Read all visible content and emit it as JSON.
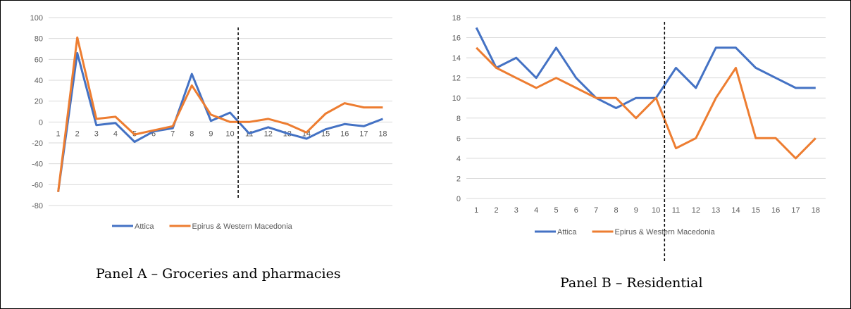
{
  "colors": {
    "attica": "#4472C4",
    "epirus": "#ED7D31",
    "grid": "#D9D9D9",
    "text": "#595959",
    "divider": "#000000"
  },
  "chart_data": [
    {
      "type": "line",
      "caption": "Panel A – Groceries and pharmacies",
      "categories": [
        "1",
        "2",
        "3",
        "4",
        "5",
        "6",
        "7",
        "8",
        "9",
        "10",
        "11",
        "12",
        "13",
        "14",
        "15",
        "16",
        "17",
        "18"
      ],
      "ylim": [
        -80,
        100
      ],
      "yticks": [
        -80,
        -60,
        -40,
        -20,
        0,
        20,
        40,
        60,
        80,
        100
      ],
      "grid": true,
      "legend_position": "bottom",
      "x_axis_labels_at": "zero line",
      "divider_after_category": "10",
      "series": [
        {
          "name": "Attica",
          "values": [
            -67,
            66,
            -3,
            -1,
            -19,
            -9,
            -6,
            46,
            1,
            9,
            -11,
            -5,
            -11,
            -16,
            -7,
            -2,
            -4,
            3
          ]
        },
        {
          "name": "Epirus & Western Macedonia",
          "values": [
            -67,
            81,
            3,
            5,
            -12,
            -8,
            -4,
            35,
            7,
            0,
            0,
            3,
            -2,
            -10,
            8,
            18,
            14,
            14
          ]
        }
      ]
    },
    {
      "type": "line",
      "caption": "Panel B – Residential",
      "categories": [
        "1",
        "2",
        "3",
        "4",
        "5",
        "6",
        "7",
        "8",
        "9",
        "10",
        "11",
        "12",
        "13",
        "14",
        "15",
        "16",
        "17",
        "18"
      ],
      "ylim": [
        0,
        18
      ],
      "yticks": [
        0,
        2,
        4,
        6,
        8,
        10,
        12,
        14,
        16,
        18
      ],
      "grid": true,
      "legend_position": "bottom",
      "divider_after_category": "10",
      "series": [
        {
          "name": "Attica",
          "values": [
            17,
            13,
            14,
            12,
            15,
            12,
            10,
            9,
            10,
            10,
            13,
            11,
            15,
            15,
            13,
            12,
            11,
            11
          ]
        },
        {
          "name": "Epirus & Western Macedonia",
          "values": [
            15,
            13,
            12,
            11,
            12,
            11,
            10,
            10,
            8,
            10,
            5,
            6,
            10,
            13,
            6,
            6,
            4,
            6
          ]
        }
      ]
    }
  ]
}
